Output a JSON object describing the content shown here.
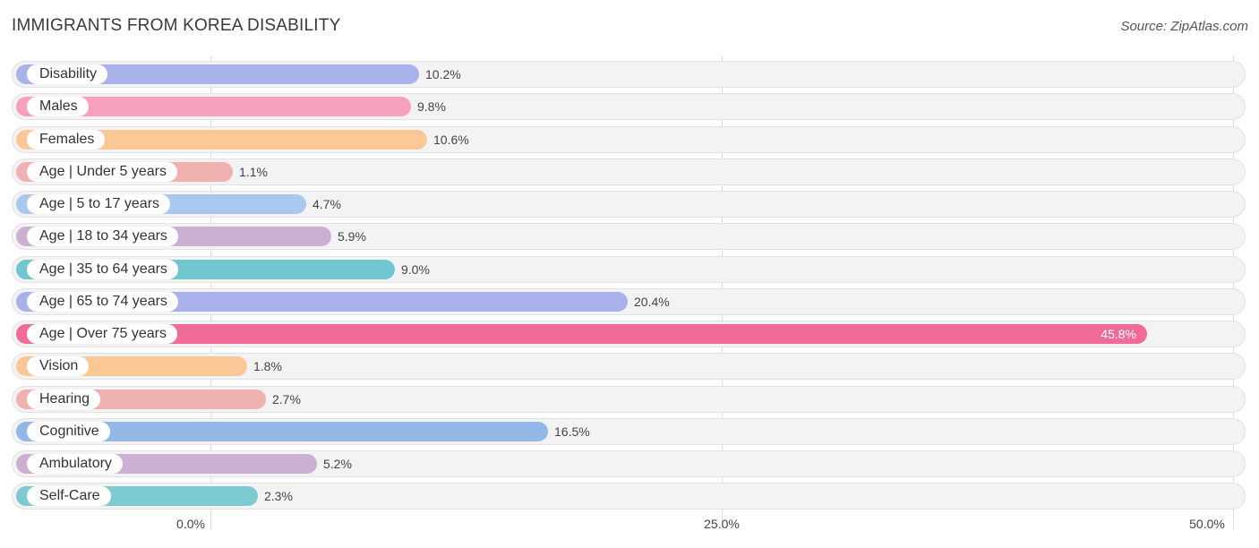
{
  "header": {
    "title": "Immigrants from Korea Disability",
    "source": "Source: ZipAtlas.com"
  },
  "chart_data": {
    "type": "bar",
    "orientation": "horizontal",
    "title": "Immigrants from Korea Disability",
    "categories": [
      "Disability",
      "Males",
      "Females",
      "Age | Under 5 years",
      "Age | 5 to 17 years",
      "Age | 18 to 34 years",
      "Age | 35 to 64 years",
      "Age | 65 to 74 years",
      "Age | Over 75 years",
      "Vision",
      "Hearing",
      "Cognitive",
      "Ambulatory",
      "Self-Care"
    ],
    "values": [
      10.2,
      9.8,
      10.6,
      1.1,
      4.7,
      5.9,
      9.0,
      20.4,
      45.8,
      1.8,
      2.7,
      16.5,
      5.2,
      2.3
    ],
    "value_labels": [
      "10.2%",
      "9.8%",
      "10.6%",
      "1.1%",
      "4.7%",
      "5.9%",
      "9.0%",
      "20.4%",
      "45.8%",
      "1.8%",
      "2.7%",
      "16.5%",
      "5.2%",
      "2.3%"
    ],
    "colors": [
      "#aab2ea",
      "#f7a0bd",
      "#fac896",
      "#f2b1b1",
      "#a9c8ee",
      "#ccb0d4",
      "#72c6d0",
      "#a9b0ea",
      "#f06b98",
      "#fac896",
      "#f2b1b1",
      "#93b8e8",
      "#ccb0d4",
      "#7ccbd1"
    ],
    "xlim": [
      0,
      50
    ],
    "x_ticks": [
      0,
      25,
      50
    ],
    "x_tick_labels": [
      "0.0%",
      "25.0%",
      "50.0%"
    ],
    "grid": true,
    "legend": "none"
  }
}
